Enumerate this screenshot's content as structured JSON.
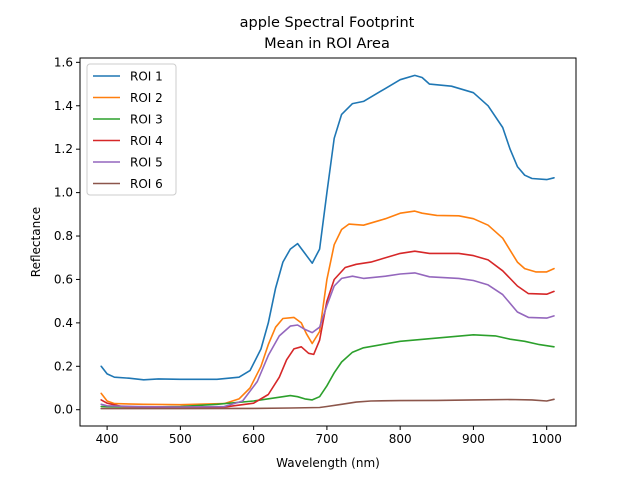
{
  "chart_data": {
    "type": "line",
    "title": "apple Spectral Footprint",
    "subtitle": "Mean in ROI Area",
    "xlabel": "Wavelength (nm)",
    "ylabel": "Reflectance",
    "xlim": [
      363,
      1040
    ],
    "ylim": [
      -0.075,
      1.62
    ],
    "x_ticks": [
      400,
      500,
      600,
      700,
      800,
      900,
      1000
    ],
    "y_ticks": [
      0.0,
      0.2,
      0.4,
      0.6,
      0.8,
      1.0,
      1.2,
      1.4,
      1.6
    ],
    "y_tick_labels": [
      "0.0",
      "0.2",
      "0.4",
      "0.6",
      "0.8",
      "1.0",
      "1.2",
      "1.4",
      "1.6"
    ],
    "grid": false,
    "legend_position": "top-left",
    "series": [
      {
        "name": "ROI 1",
        "color": "#1f77b4",
        "points": [
          [
            392,
            0.2
          ],
          [
            400,
            0.165
          ],
          [
            410,
            0.15
          ],
          [
            430,
            0.145
          ],
          [
            450,
            0.138
          ],
          [
            470,
            0.142
          ],
          [
            500,
            0.14
          ],
          [
            550,
            0.14
          ],
          [
            580,
            0.15
          ],
          [
            595,
            0.18
          ],
          [
            610,
            0.28
          ],
          [
            620,
            0.4
          ],
          [
            630,
            0.56
          ],
          [
            640,
            0.68
          ],
          [
            650,
            0.74
          ],
          [
            660,
            0.765
          ],
          [
            670,
            0.72
          ],
          [
            680,
            0.675
          ],
          [
            690,
            0.74
          ],
          [
            700,
            1.0
          ],
          [
            710,
            1.25
          ],
          [
            720,
            1.36
          ],
          [
            735,
            1.41
          ],
          [
            750,
            1.42
          ],
          [
            780,
            1.48
          ],
          [
            800,
            1.52
          ],
          [
            820,
            1.54
          ],
          [
            830,
            1.53
          ],
          [
            840,
            1.5
          ],
          [
            870,
            1.49
          ],
          [
            900,
            1.46
          ],
          [
            920,
            1.4
          ],
          [
            940,
            1.3
          ],
          [
            950,
            1.2
          ],
          [
            960,
            1.12
          ],
          [
            970,
            1.08
          ],
          [
            980,
            1.065
          ],
          [
            1000,
            1.06
          ],
          [
            1010,
            1.068
          ]
        ]
      },
      {
        "name": "ROI 2",
        "color": "#ff7f0e",
        "points": [
          [
            392,
            0.075
          ],
          [
            400,
            0.04
          ],
          [
            410,
            0.028
          ],
          [
            450,
            0.025
          ],
          [
            500,
            0.023
          ],
          [
            560,
            0.028
          ],
          [
            580,
            0.05
          ],
          [
            595,
            0.1
          ],
          [
            610,
            0.2
          ],
          [
            620,
            0.3
          ],
          [
            630,
            0.38
          ],
          [
            640,
            0.42
          ],
          [
            655,
            0.425
          ],
          [
            665,
            0.4
          ],
          [
            672,
            0.35
          ],
          [
            680,
            0.305
          ],
          [
            690,
            0.36
          ],
          [
            700,
            0.6
          ],
          [
            710,
            0.76
          ],
          [
            720,
            0.83
          ],
          [
            730,
            0.855
          ],
          [
            750,
            0.85
          ],
          [
            780,
            0.88
          ],
          [
            800,
            0.905
          ],
          [
            820,
            0.915
          ],
          [
            830,
            0.905
          ],
          [
            850,
            0.895
          ],
          [
            880,
            0.893
          ],
          [
            900,
            0.88
          ],
          [
            920,
            0.85
          ],
          [
            940,
            0.79
          ],
          [
            960,
            0.68
          ],
          [
            970,
            0.65
          ],
          [
            985,
            0.635
          ],
          [
            1000,
            0.635
          ],
          [
            1010,
            0.65
          ]
        ]
      },
      {
        "name": "ROI 3",
        "color": "#2ca02c",
        "points": [
          [
            392,
            0.015
          ],
          [
            400,
            0.014
          ],
          [
            450,
            0.012
          ],
          [
            500,
            0.015
          ],
          [
            550,
            0.025
          ],
          [
            600,
            0.04
          ],
          [
            640,
            0.06
          ],
          [
            650,
            0.065
          ],
          [
            660,
            0.06
          ],
          [
            670,
            0.05
          ],
          [
            680,
            0.045
          ],
          [
            690,
            0.06
          ],
          [
            700,
            0.11
          ],
          [
            710,
            0.17
          ],
          [
            720,
            0.22
          ],
          [
            735,
            0.265
          ],
          [
            750,
            0.285
          ],
          [
            800,
            0.315
          ],
          [
            850,
            0.33
          ],
          [
            900,
            0.345
          ],
          [
            930,
            0.34
          ],
          [
            950,
            0.325
          ],
          [
            970,
            0.315
          ],
          [
            990,
            0.3
          ],
          [
            1010,
            0.29
          ]
        ]
      },
      {
        "name": "ROI 4",
        "color": "#d62728",
        "points": [
          [
            392,
            0.045
          ],
          [
            400,
            0.03
          ],
          [
            420,
            0.015
          ],
          [
            450,
            0.012
          ],
          [
            500,
            0.01
          ],
          [
            560,
            0.012
          ],
          [
            600,
            0.03
          ],
          [
            620,
            0.07
          ],
          [
            635,
            0.15
          ],
          [
            645,
            0.23
          ],
          [
            655,
            0.28
          ],
          [
            665,
            0.29
          ],
          [
            675,
            0.26
          ],
          [
            682,
            0.255
          ],
          [
            690,
            0.32
          ],
          [
            700,
            0.5
          ],
          [
            710,
            0.6
          ],
          [
            725,
            0.655
          ],
          [
            740,
            0.67
          ],
          [
            760,
            0.68
          ],
          [
            800,
            0.72
          ],
          [
            820,
            0.73
          ],
          [
            840,
            0.72
          ],
          [
            880,
            0.72
          ],
          [
            900,
            0.71
          ],
          [
            920,
            0.69
          ],
          [
            940,
            0.64
          ],
          [
            960,
            0.57
          ],
          [
            975,
            0.535
          ],
          [
            1000,
            0.532
          ],
          [
            1010,
            0.545
          ]
        ]
      },
      {
        "name": "ROI 5",
        "color": "#9467bd",
        "points": [
          [
            392,
            0.025
          ],
          [
            400,
            0.018
          ],
          [
            450,
            0.014
          ],
          [
            500,
            0.012
          ],
          [
            560,
            0.015
          ],
          [
            585,
            0.04
          ],
          [
            605,
            0.13
          ],
          [
            620,
            0.25
          ],
          [
            635,
            0.34
          ],
          [
            650,
            0.385
          ],
          [
            660,
            0.39
          ],
          [
            670,
            0.37
          ],
          [
            680,
            0.355
          ],
          [
            690,
            0.38
          ],
          [
            700,
            0.48
          ],
          [
            710,
            0.57
          ],
          [
            720,
            0.605
          ],
          [
            735,
            0.615
          ],
          [
            750,
            0.605
          ],
          [
            780,
            0.615
          ],
          [
            800,
            0.625
          ],
          [
            820,
            0.63
          ],
          [
            840,
            0.612
          ],
          [
            880,
            0.605
          ],
          [
            900,
            0.595
          ],
          [
            920,
            0.575
          ],
          [
            940,
            0.53
          ],
          [
            960,
            0.45
          ],
          [
            975,
            0.425
          ],
          [
            1000,
            0.422
          ],
          [
            1010,
            0.432
          ]
        ]
      },
      {
        "name": "ROI 6",
        "color": "#8c564b",
        "points": [
          [
            392,
            0.005
          ],
          [
            420,
            0.005
          ],
          [
            500,
            0.005
          ],
          [
            600,
            0.006
          ],
          [
            650,
            0.008
          ],
          [
            690,
            0.01
          ],
          [
            700,
            0.015
          ],
          [
            720,
            0.025
          ],
          [
            740,
            0.035
          ],
          [
            760,
            0.04
          ],
          [
            800,
            0.042
          ],
          [
            850,
            0.043
          ],
          [
            900,
            0.045
          ],
          [
            950,
            0.047
          ],
          [
            980,
            0.045
          ],
          [
            1000,
            0.04
          ],
          [
            1010,
            0.048
          ]
        ]
      }
    ]
  }
}
